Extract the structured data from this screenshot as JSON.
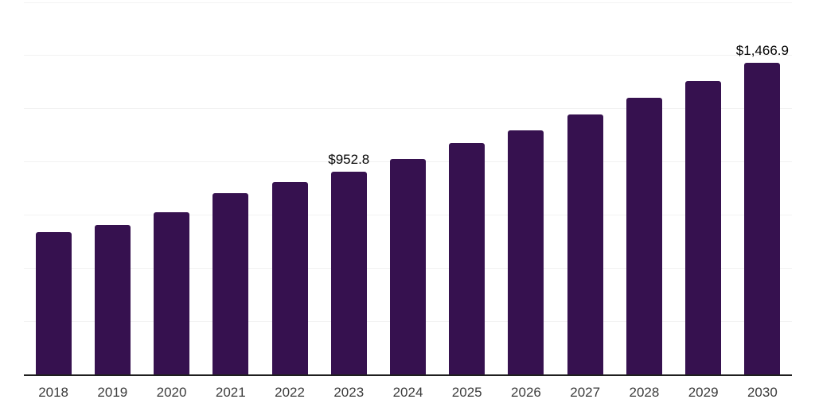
{
  "chart_data": {
    "type": "bar",
    "title": "",
    "xlabel": "",
    "ylabel": "",
    "categories": [
      "2018",
      "2019",
      "2020",
      "2021",
      "2022",
      "2023",
      "2024",
      "2025",
      "2026",
      "2027",
      "2028",
      "2029",
      "2030"
    ],
    "values": [
      669,
      702,
      762,
      851,
      906,
      952.8,
      1015,
      1088,
      1147,
      1222,
      1300,
      1380,
      1466.9
    ],
    "bar_labels": [
      "",
      "",
      "",
      "",
      "",
      "$952.8",
      "",
      "",
      "",
      "",
      "",
      "",
      "$1,466.9"
    ],
    "ylim": [
      0,
      1750
    ],
    "gridline_step": 250,
    "grid": "horizontal",
    "legend_position": "none"
  },
  "colors": {
    "bar": "#36114F",
    "axis": "#1f1f1f",
    "gridline": "#f2f2f2",
    "tick_label": "#3c3c3c",
    "value_label": "#050505",
    "background": "#ffffff"
  }
}
